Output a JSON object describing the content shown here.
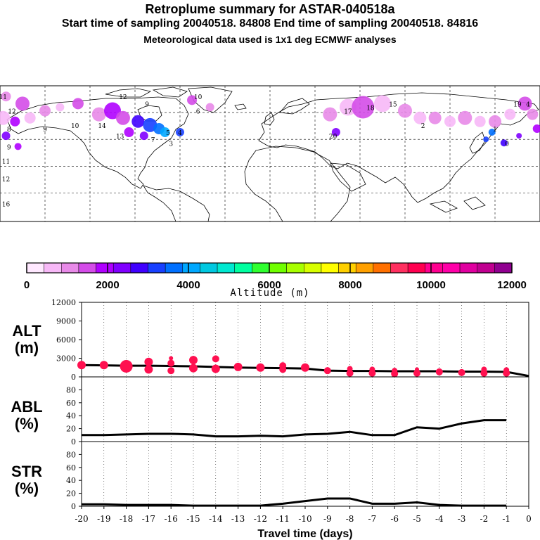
{
  "header": {
    "title": "Retroplume summary for ASTAR-040518a",
    "sampling_line": "Start time of sampling 20040518. 84808     End time of sampling 20040518. 84816",
    "met_line": "Meteorological data used is 1x1 deg ECMWF analyses"
  },
  "map": {
    "labels": [
      {
        "text": "11",
        "lon": -178,
        "lat": 84
      },
      {
        "text": "12",
        "lon": -98,
        "lat": 84
      },
      {
        "text": "9",
        "lon": -82,
        "lat": 80
      },
      {
        "text": "10",
        "lon": -48,
        "lat": 84
      },
      {
        "text": "12",
        "lon": -172,
        "lat": 76
      },
      {
        "text": "8",
        "lon": -174,
        "lat": 66
      },
      {
        "text": "9",
        "lon": -150,
        "lat": 66
      },
      {
        "text": "10",
        "lon": -130,
        "lat": 68
      },
      {
        "text": "14",
        "lon": -112,
        "lat": 68
      },
      {
        "text": "13",
        "lon": -100,
        "lat": 62
      },
      {
        "text": "9",
        "lon": -174,
        "lat": 56
      },
      {
        "text": "7",
        "lon": -78,
        "lat": 60
      },
      {
        "text": "5",
        "lon": -68,
        "lat": 64
      },
      {
        "text": "4",
        "lon": -60,
        "lat": 64
      },
      {
        "text": "3",
        "lon": -66,
        "lat": 58
      },
      {
        "text": "6",
        "lon": -48,
        "lat": 76
      },
      {
        "text": "17",
        "lon": 52,
        "lat": 76
      },
      {
        "text": "18",
        "lon": 67,
        "lat": 78
      },
      {
        "text": "15",
        "lon": 82,
        "lat": 80
      },
      {
        "text": "20",
        "lon": 42,
        "lat": 62
      },
      {
        "text": "19",
        "lon": 165,
        "lat": 80
      },
      {
        "text": "4",
        "lon": 172,
        "lat": 80
      },
      {
        "text": "2",
        "lon": 102,
        "lat": 68
      },
      {
        "text": "1",
        "lon": 150,
        "lat": 66
      },
      {
        "text": "0",
        "lon": 158,
        "lat": 58
      },
      {
        "text": "11",
        "lon": -176,
        "lat": 48
      },
      {
        "text": "12",
        "lon": -176,
        "lat": 38
      },
      {
        "text": "16",
        "lon": -176,
        "lat": 24
      }
    ]
  },
  "colorbar": {
    "tick_labels": [
      "0",
      "2000",
      "4000",
      "6000",
      "8000",
      "10000",
      "12000"
    ],
    "label": "Altitude (m)",
    "colors": [
      "#ffe8ff",
      "#f7b8f7",
      "#e88ae8",
      "#d44ce8",
      "#b000ff",
      "#8000ff",
      "#4000ff",
      "#1840ff",
      "#0070ff",
      "#00a8ff",
      "#00c8e0",
      "#00e8d0",
      "#00ffa0",
      "#30ff30",
      "#70ff00",
      "#a8ff00",
      "#d8ff00",
      "#ffff00",
      "#ffd000",
      "#ffa000",
      "#ff7000",
      "#ff3060",
      "#ff0050",
      "#ff0090",
      "#ff00a8",
      "#e000a0",
      "#c00090",
      "#900090"
    ]
  },
  "chart_data": [
    {
      "type": "scatter",
      "name": "ALT",
      "ylabel": "ALT\n(m)",
      "ylabel_line1": "ALT",
      "ylabel_line2": "(m)",
      "xlim": [
        -20,
        0
      ],
      "ylim": [
        0,
        12000
      ],
      "yticks": [
        "0",
        "3000",
        "6000",
        "9000",
        "12000"
      ],
      "line": {
        "x": [
          -20,
          -19,
          -18,
          -17,
          -16,
          -15,
          -14,
          -13,
          -12,
          -11,
          -10,
          -9,
          -8,
          -7,
          -6,
          -5,
          -4,
          -3,
          -2,
          -1,
          0
        ],
        "y": [
          1900,
          1850,
          1800,
          1800,
          1750,
          1700,
          1600,
          1500,
          1450,
          1400,
          1350,
          1000,
          950,
          950,
          900,
          900,
          900,
          850,
          850,
          800,
          150
        ]
      },
      "points": [
        {
          "x": -20,
          "y": 1900,
          "s": 6
        },
        {
          "x": -19,
          "y": 1900,
          "s": 6
        },
        {
          "x": -18,
          "y": 1700,
          "s": 9
        },
        {
          "x": -17,
          "y": 2400,
          "s": 6
        },
        {
          "x": -17,
          "y": 1200,
          "s": 6
        },
        {
          "x": -16,
          "y": 3000,
          "s": 3
        },
        {
          "x": -16,
          "y": 2200,
          "s": 5
        },
        {
          "x": -16,
          "y": 1000,
          "s": 5
        },
        {
          "x": -15,
          "y": 2700,
          "s": 6
        },
        {
          "x": -15,
          "y": 1400,
          "s": 6
        },
        {
          "x": -14,
          "y": 2900,
          "s": 5
        },
        {
          "x": -14,
          "y": 1300,
          "s": 6
        },
        {
          "x": -13,
          "y": 1600,
          "s": 6
        },
        {
          "x": -12,
          "y": 1500,
          "s": 6
        },
        {
          "x": -11,
          "y": 1800,
          "s": 5
        },
        {
          "x": -11,
          "y": 1200,
          "s": 5
        },
        {
          "x": -10,
          "y": 1500,
          "s": 6
        },
        {
          "x": -9,
          "y": 1000,
          "s": 5
        },
        {
          "x": -8,
          "y": 1300,
          "s": 4
        },
        {
          "x": -8,
          "y": 600,
          "s": 5
        },
        {
          "x": -7,
          "y": 1200,
          "s": 4
        },
        {
          "x": -7,
          "y": 600,
          "s": 5
        },
        {
          "x": -6,
          "y": 1000,
          "s": 4
        },
        {
          "x": -6,
          "y": 500,
          "s": 5
        },
        {
          "x": -5,
          "y": 1200,
          "s": 3
        },
        {
          "x": -5,
          "y": 600,
          "s": 5
        },
        {
          "x": -4,
          "y": 800,
          "s": 5
        },
        {
          "x": -3,
          "y": 700,
          "s": 5
        },
        {
          "x": -2,
          "y": 1200,
          "s": 4
        },
        {
          "x": -2,
          "y": 600,
          "s": 5
        },
        {
          "x": -1,
          "y": 1100,
          "s": 4
        },
        {
          "x": -1,
          "y": 600,
          "s": 5
        }
      ]
    },
    {
      "type": "line",
      "name": "ABL",
      "ylabel_line1": "ABL",
      "ylabel_line2": "(%)",
      "xlim": [
        -20,
        0
      ],
      "ylim": [
        0,
        100
      ],
      "yticks": [
        "0",
        "20",
        "40",
        "60",
        "80"
      ],
      "x": [
        -20,
        -19,
        -18,
        -17,
        -16,
        -15,
        -14,
        -13,
        -12,
        -11,
        -10,
        -9,
        -8,
        -7,
        -6,
        -5,
        -4,
        -3,
        -2,
        -1
      ],
      "y": [
        10,
        10,
        11,
        12,
        12,
        11,
        8,
        8,
        9,
        8,
        11,
        12,
        15,
        10,
        10,
        22,
        20,
        28,
        33,
        33
      ]
    },
    {
      "type": "line",
      "name": "STR",
      "ylabel_line1": "STR",
      "ylabel_line2": "(%)",
      "xlim": [
        -20,
        0
      ],
      "ylim": [
        0,
        100
      ],
      "yticks": [
        "0",
        "20",
        "40",
        "60",
        "80"
      ],
      "x": [
        -20,
        -19,
        -18,
        -17,
        -16,
        -15,
        -14,
        -13,
        -12,
        -11,
        -10,
        -9,
        -8,
        -7,
        -6,
        -5,
        -4,
        -3,
        -2,
        -1
      ],
      "y": [
        3,
        3,
        2,
        2,
        2,
        1,
        1,
        1,
        1,
        4,
        8,
        12,
        12,
        4,
        4,
        6,
        2,
        1,
        1,
        1
      ],
      "xlabel": "Travel time (days)",
      "xticks": [
        "-20",
        "-19",
        "-18",
        "-17",
        "-16",
        "-15",
        "-14",
        "-13",
        "-12",
        "-11",
        "-10",
        "-9",
        "-8",
        "-7",
        "-6",
        "-5",
        "-4",
        "-3",
        "-2",
        "-1",
        "0"
      ]
    }
  ]
}
